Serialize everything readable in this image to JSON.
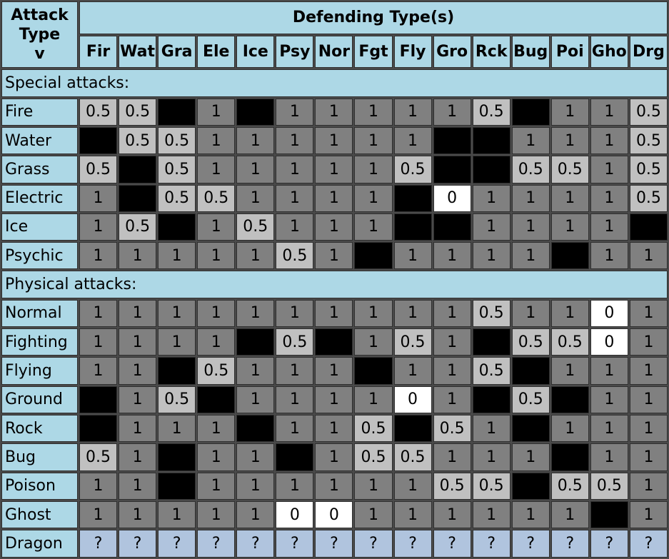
{
  "corner_label": [
    "Attack",
    "Type",
    "v"
  ],
  "title": "Defending Type(s)",
  "defending_types": [
    "Fir",
    "Wat",
    "Gra",
    "Ele",
    "Ice",
    "Psy",
    "Nor",
    "Fgt",
    "Fly",
    "Gro",
    "Rck",
    "Bug",
    "Poi",
    "Gho",
    "Drg"
  ],
  "colors": {
    "header_bg": "#add8e6",
    "grid_bg": "#4a4a4a",
    "value_0": "#ffffff",
    "value_0.5": "#c0c0c0",
    "value_1": "#808080",
    "value_2": "#000000",
    "value_unknown": "#b0c4de"
  },
  "sections": [
    {
      "label": "Special attacks:",
      "rows": [
        {
          "type": "Fire",
          "values": [
            "0.5",
            "0.5",
            "2",
            "1",
            "2",
            "1",
            "1",
            "1",
            "1",
            "1",
            "0.5",
            "2",
            "1",
            "1",
            "0.5"
          ]
        },
        {
          "type": "Water",
          "values": [
            "2",
            "0.5",
            "0.5",
            "1",
            "1",
            "1",
            "1",
            "1",
            "1",
            "2",
            "2",
            "1",
            "1",
            "1",
            "0.5"
          ]
        },
        {
          "type": "Grass",
          "values": [
            "0.5",
            "2",
            "0.5",
            "1",
            "1",
            "1",
            "1",
            "1",
            "0.5",
            "2",
            "2",
            "0.5",
            "0.5",
            "1",
            "0.5"
          ]
        },
        {
          "type": "Electric",
          "values": [
            "1",
            "2",
            "0.5",
            "0.5",
            "1",
            "1",
            "1",
            "1",
            "2",
            "0",
            "1",
            "1",
            "1",
            "1",
            "0.5"
          ]
        },
        {
          "type": "Ice",
          "values": [
            "1",
            "0.5",
            "2",
            "1",
            "0.5",
            "1",
            "1",
            "1",
            "2",
            "2",
            "1",
            "1",
            "1",
            "1",
            "2"
          ]
        },
        {
          "type": "Psychic",
          "values": [
            "1",
            "1",
            "1",
            "1",
            "1",
            "0.5",
            "1",
            "2",
            "1",
            "1",
            "1",
            "1",
            "2",
            "1",
            "1"
          ]
        }
      ]
    },
    {
      "label": "Physical attacks:",
      "rows": [
        {
          "type": "Normal",
          "values": [
            "1",
            "1",
            "1",
            "1",
            "1",
            "1",
            "1",
            "1",
            "1",
            "1",
            "0.5",
            "1",
            "1",
            "0",
            "1"
          ]
        },
        {
          "type": "Fighting",
          "values": [
            "1",
            "1",
            "1",
            "1",
            "2",
            "0.5",
            "2",
            "1",
            "0.5",
            "1",
            "2",
            "0.5",
            "0.5",
            "0",
            "1"
          ]
        },
        {
          "type": "Flying",
          "values": [
            "1",
            "1",
            "2",
            "0.5",
            "1",
            "1",
            "1",
            "2",
            "1",
            "1",
            "0.5",
            "2",
            "1",
            "1",
            "1"
          ]
        },
        {
          "type": "Ground",
          "values": [
            "2",
            "1",
            "0.5",
            "2",
            "1",
            "1",
            "1",
            "1",
            "0",
            "1",
            "2",
            "0.5",
            "2",
            "1",
            "1"
          ]
        },
        {
          "type": "Rock",
          "values": [
            "2",
            "1",
            "1",
            "1",
            "2",
            "1",
            "1",
            "0.5",
            "2",
            "0.5",
            "1",
            "2",
            "1",
            "1",
            "1"
          ]
        },
        {
          "type": "Bug",
          "values": [
            "0.5",
            "1",
            "2",
            "1",
            "1",
            "2",
            "1",
            "0.5",
            "0.5",
            "1",
            "1",
            "1",
            "2",
            "1",
            "1"
          ]
        },
        {
          "type": "Poison",
          "values": [
            "1",
            "1",
            "2",
            "1",
            "1",
            "1",
            "1",
            "1",
            "1",
            "0.5",
            "0.5",
            "2",
            "0.5",
            "0.5",
            "1"
          ]
        },
        {
          "type": "Ghost",
          "values": [
            "1",
            "1",
            "1",
            "1",
            "1",
            "0",
            "0",
            "1",
            "1",
            "1",
            "1",
            "1",
            "1",
            "2",
            "1"
          ]
        },
        {
          "type": "Dragon",
          "values": [
            "?",
            "?",
            "?",
            "?",
            "?",
            "?",
            "?",
            "?",
            "?",
            "?",
            "?",
            "?",
            "?",
            "?",
            "?"
          ]
        }
      ]
    }
  ]
}
